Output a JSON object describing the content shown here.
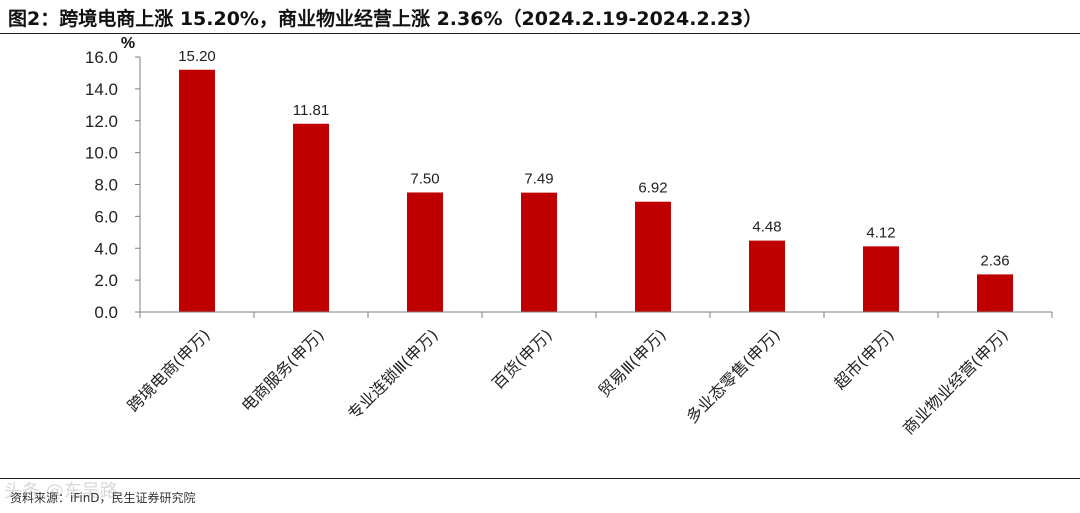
{
  "header": {
    "title": "图2：跨境电商上涨 15.20%，商业物业经营上涨 2.36%（2024.2.19-2024.2.23）"
  },
  "footer": {
    "source": "资料来源：iFinD，民生证券研究院",
    "watermark": "头条 @东吴路"
  },
  "chart_data": {
    "type": "bar",
    "title": "",
    "xlabel": "",
    "ylabel": "%",
    "ylim": [
      0,
      16
    ],
    "yticks": [
      0,
      2,
      4,
      6,
      8,
      10,
      12,
      14,
      16
    ],
    "ytick_labels": [
      "0.0",
      "2.0",
      "4.0",
      "6.0",
      "8.0",
      "10.0",
      "12.0",
      "14.0",
      "16.0"
    ],
    "categories": [
      "跨境电商(申万)",
      "电商服务(申万)",
      "专业连锁Ⅲ(申万)",
      "百货(申万)",
      "贸易Ⅲ(申万)",
      "多业态零售(申万)",
      "超市(申万)",
      "商业物业经营(申万)"
    ],
    "values": [
      15.2,
      11.81,
      7.5,
      7.49,
      6.92,
      4.48,
      4.12,
      2.36
    ],
    "value_labels": [
      "15.20",
      "11.81",
      "7.50",
      "7.49",
      "6.92",
      "4.48",
      "4.12",
      "2.36"
    ],
    "bar_color": "#C00000",
    "grid": false,
    "legend": "none"
  }
}
